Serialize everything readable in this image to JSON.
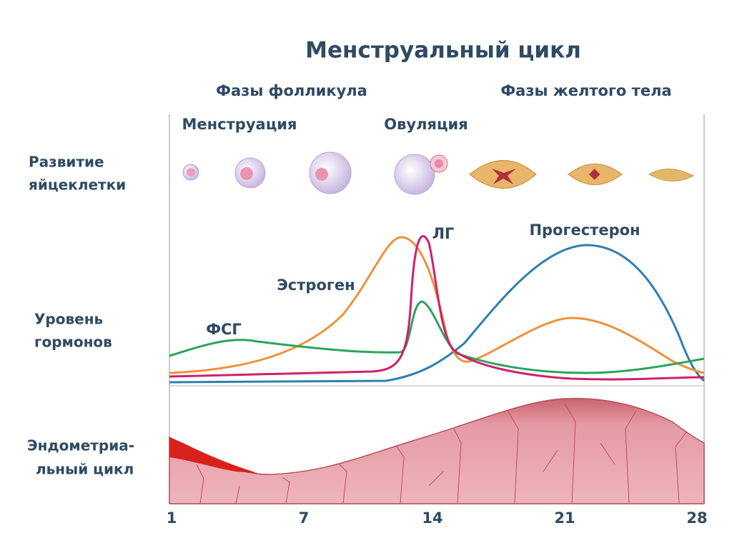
{
  "title": "Менструальный цикл",
  "phases": [
    "Фазы фолликула",
    "Фазы желтого тела"
  ],
  "stages": [
    "Менструация",
    "Овуляция"
  ],
  "rows": [
    [
      "Развитие",
      "яйцеклетки"
    ],
    [
      "Уровень",
      "гормонов"
    ],
    [
      "Эндометриа-",
      "льный цикл"
    ]
  ],
  "hormones": [
    "ЛГ",
    "Прогестерон",
    "Эстроген",
    "ФСГ"
  ],
  "days": [
    "1",
    "7",
    "14",
    "21",
    "28"
  ]
}
